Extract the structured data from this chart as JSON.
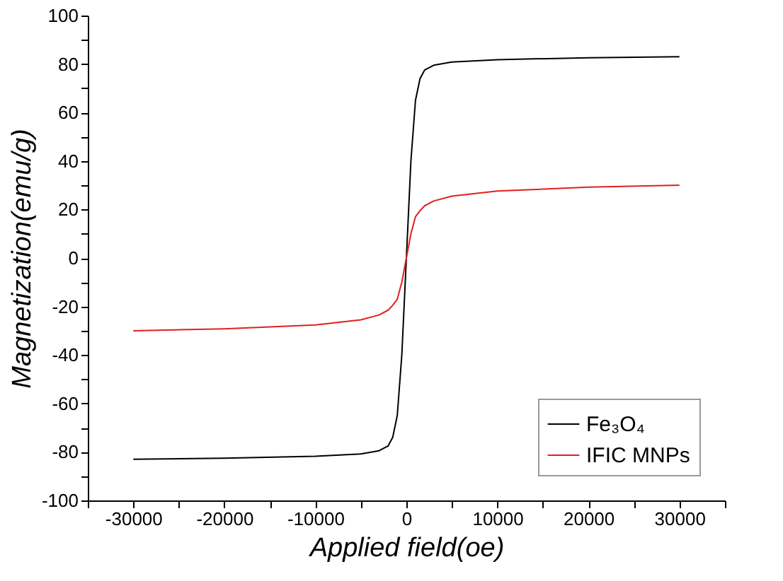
{
  "chart_data": {
    "type": "line",
    "xlabel": "Applied field(oe)",
    "ylabel": "Magnetization(emu/g)",
    "xlim": [
      -35000,
      35000
    ],
    "xticks": [
      {
        "value": -35000,
        "label": null
      },
      -30000,
      {
        "value": -25000,
        "label": null
      },
      -20000,
      {
        "value": -15000,
        "label": null
      },
      -10000,
      {
        "value": -5000,
        "label": null
      },
      0,
      {
        "value": 5000,
        "label": null
      },
      10000,
      {
        "value": 15000,
        "label": null
      },
      20000,
      {
        "value": 25000,
        "label": null
      },
      30000,
      {
        "value": 35000,
        "label": null
      }
    ],
    "ylim": [
      -100,
      100
    ],
    "yticks": [
      -100,
      {
        "value": -90,
        "label": null
      },
      -80,
      {
        "value": -70,
        "label": null
      },
      -60,
      {
        "value": -50,
        "label": null
      },
      -40,
      {
        "value": -30,
        "label": null
      },
      -20,
      {
        "value": -10,
        "label": null
      },
      0,
      {
        "value": 10,
        "label": null
      },
      20,
      {
        "value": 30,
        "label": null
      },
      40,
      {
        "value": 50,
        "label": null
      },
      60,
      {
        "value": 70,
        "label": null
      },
      80,
      {
        "value": 90,
        "label": null
      },
      100
    ],
    "x": [
      -30000,
      -20000,
      -10000,
      -5000,
      -3000,
      -2000,
      -1500,
      -1000,
      -500,
      0,
      500,
      1000,
      1500,
      2000,
      3000,
      5000,
      10000,
      20000,
      30000
    ],
    "series": [
      {
        "name": "Fe₃O₄",
        "color": "#000000",
        "values": [
          -83,
          -82.6,
          -81.8,
          -80.8,
          -79.5,
          -77.5,
          -74,
          -65,
          -40,
          0,
          40,
          65,
          74,
          77.5,
          79.5,
          80.8,
          81.8,
          82.6,
          83
        ]
      },
      {
        "name": "IFIC MNPs",
        "color": "#e02020",
        "values": [
          -30,
          -29.2,
          -27.6,
          -25.5,
          -23.5,
          -21.5,
          -19.5,
          -17,
          -10,
          0,
          10,
          17,
          19.5,
          21.5,
          23.5,
          25.5,
          27.6,
          29.2,
          30
        ]
      }
    ],
    "legend": "bottom right",
    "grid": false,
    "marker": "none",
    "line_style": "solid"
  }
}
